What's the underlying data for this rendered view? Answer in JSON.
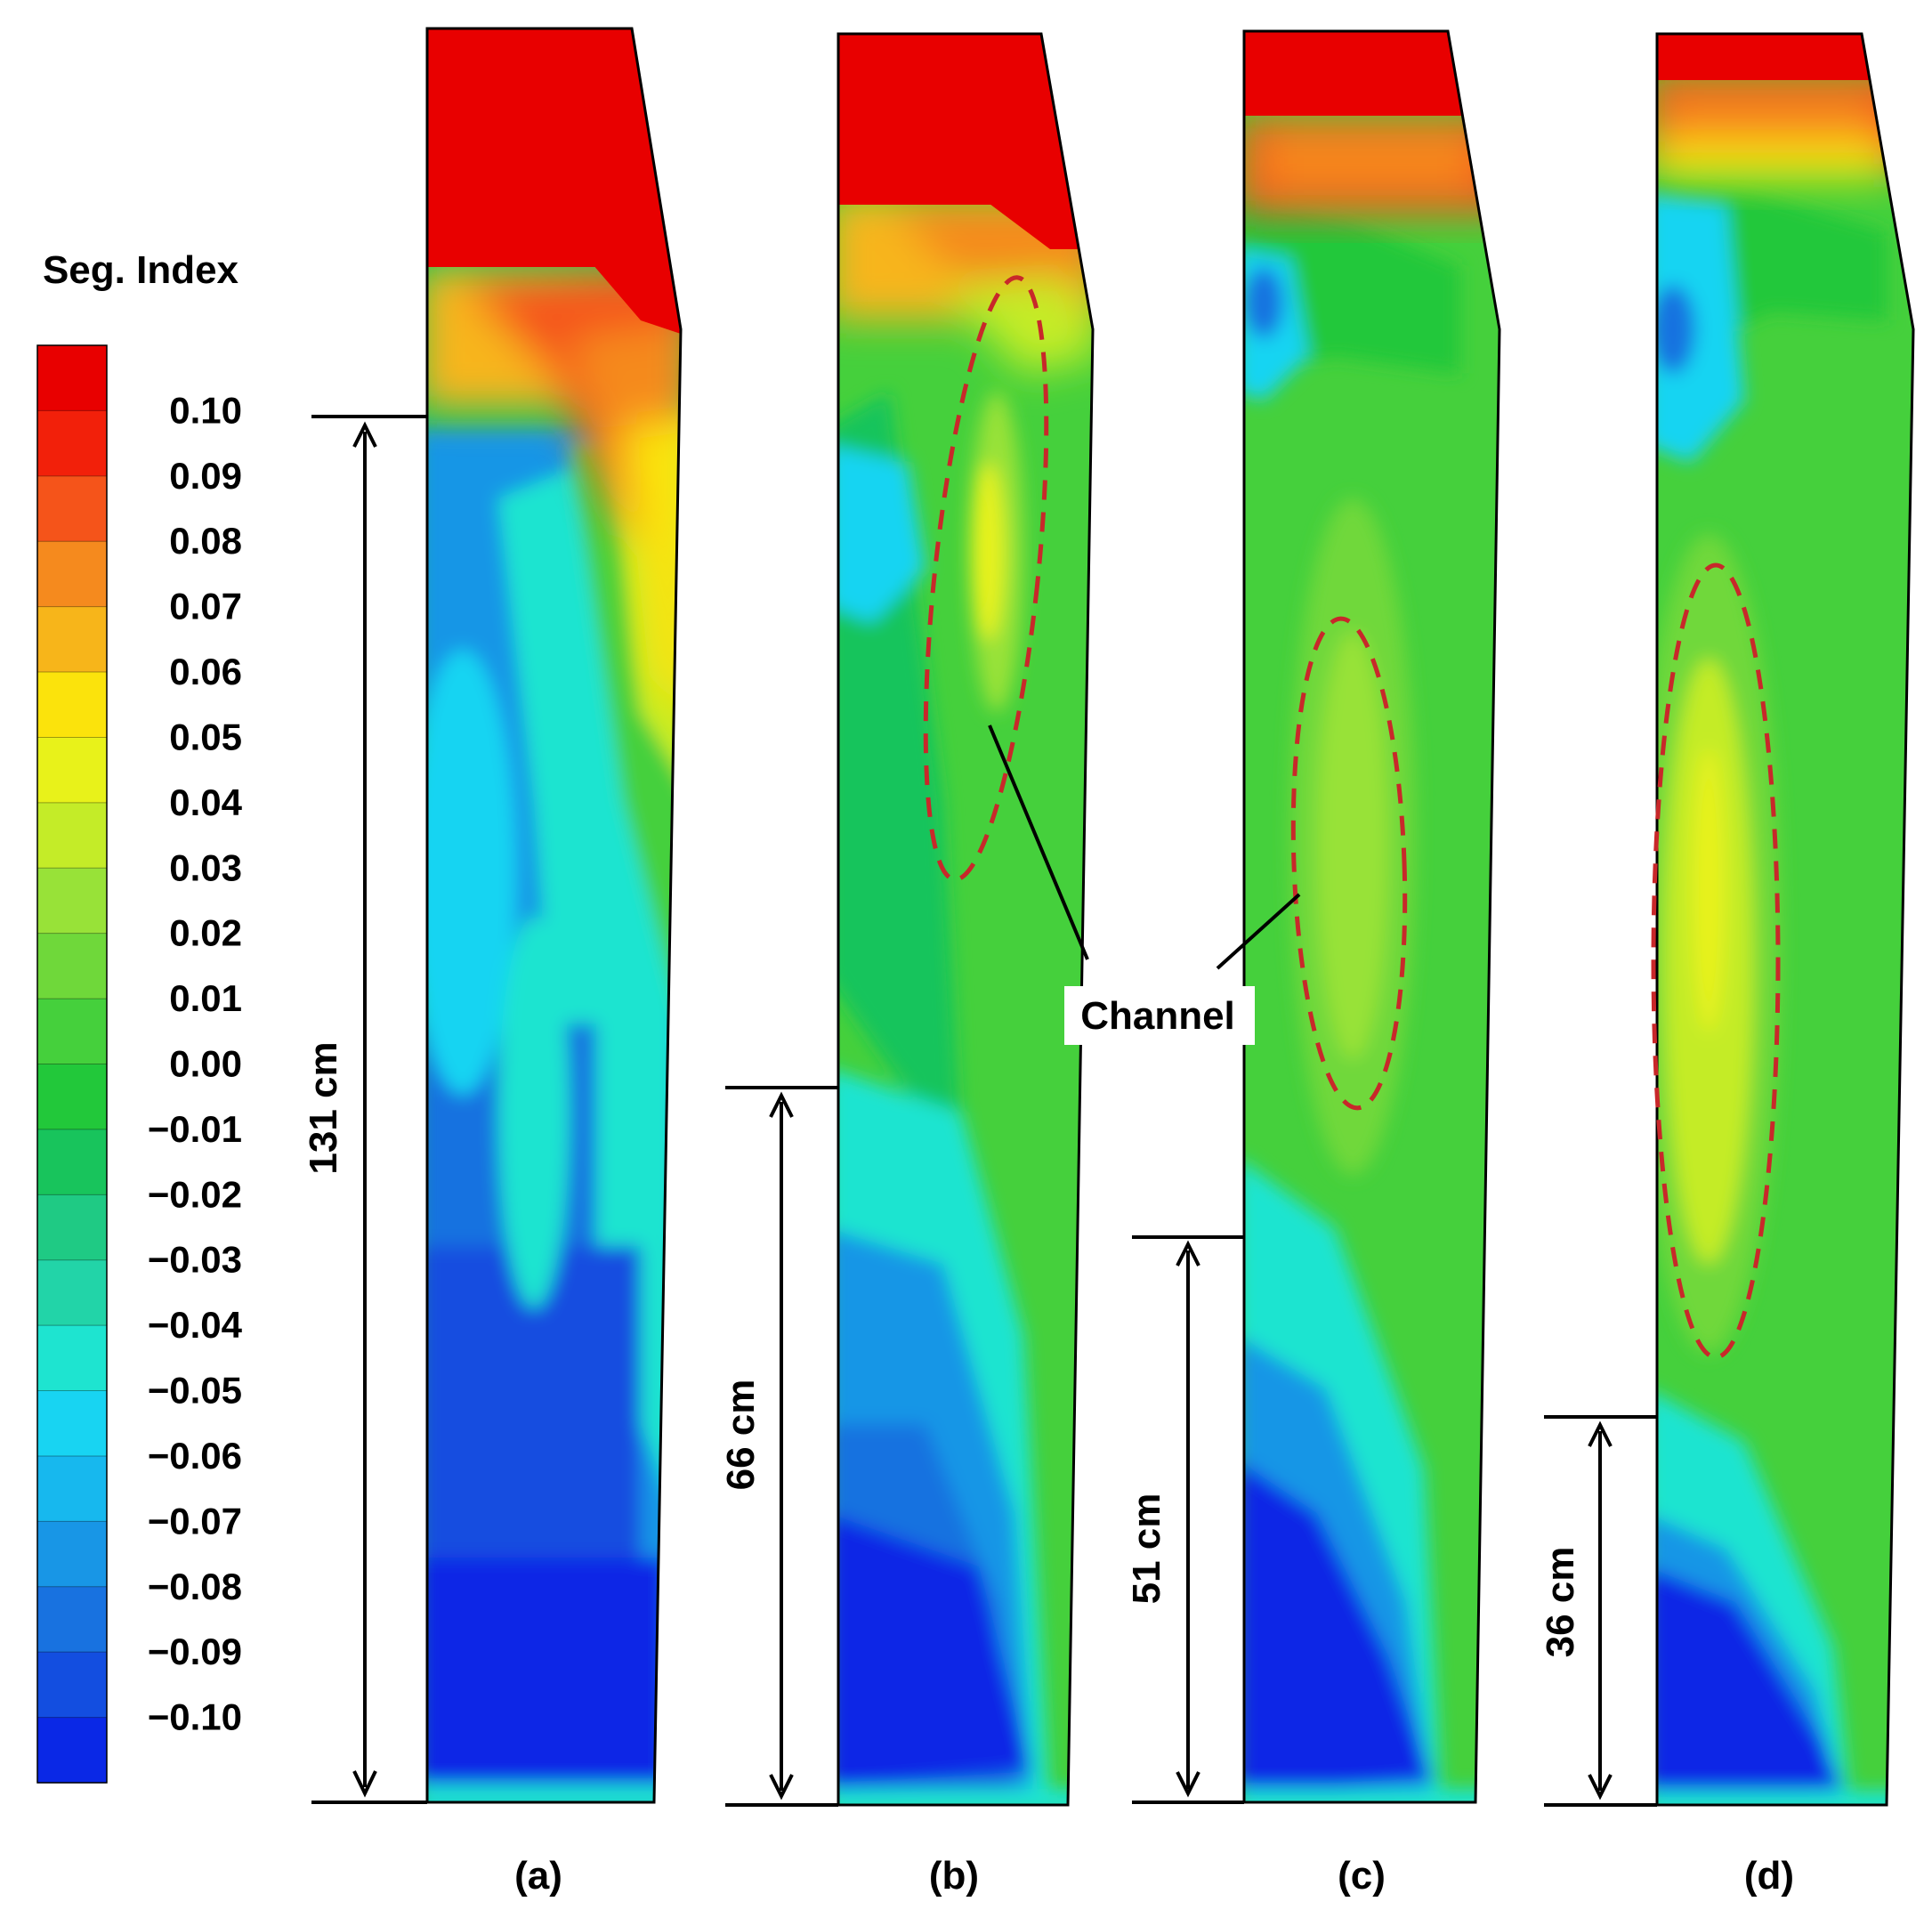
{
  "legend": {
    "title": "Seg. Index",
    "colors": [
      "#e80000",
      "#f2200a",
      "#f5541a",
      "#f58a1e",
      "#f7b51a",
      "#fbe30c",
      "#e8f21a",
      "#c4ec28",
      "#98e238",
      "#6fd83a",
      "#45d03c",
      "#22c83a",
      "#18c45c",
      "#1fca84",
      "#22d4a8",
      "#1ee4d0",
      "#18d4f2",
      "#17b8ee",
      "#1896e6",
      "#1872e0",
      "#134ee0",
      "#0a28e6"
    ],
    "tick_labels": [
      "0.10",
      "0.09",
      "0.08",
      "0.07",
      "0.06",
      "0.05",
      "0.04",
      "0.03",
      "0.02",
      "0.01",
      "0.00",
      "−0.01",
      "−0.02",
      "−0.03",
      "−0.04",
      "−0.05",
      "−0.06",
      "−0.07",
      "−0.08",
      "−0.09",
      "−0.10"
    ]
  },
  "panels": [
    {
      "id": "a",
      "label": "(a)",
      "dimension": "131 cm",
      "channel": false
    },
    {
      "id": "b",
      "label": "(b)",
      "dimension": "66 cm",
      "channel": true
    },
    {
      "id": "c",
      "label": "(c)",
      "dimension": "51 cm",
      "channel": true
    },
    {
      "id": "d",
      "label": "(d)",
      "dimension": "36 cm",
      "channel": true
    }
  ],
  "annotation": {
    "channel_label": "Channel"
  }
}
